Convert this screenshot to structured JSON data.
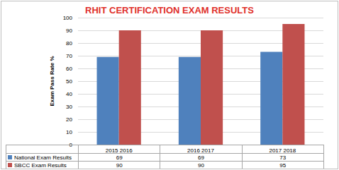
{
  "chart_data": {
    "type": "bar",
    "title": "RHIT CERTIFICATION EXAM RESULTS",
    "y_label": "Exam Pass Rate %",
    "categories": [
      "2015 2016",
      "2016 2017",
      "2017 2018"
    ],
    "series": [
      {
        "name": "National Exam Results",
        "color": "#4f81bd",
        "values": [
          69,
          69,
          73
        ]
      },
      {
        "name": "SBCC Exam Results",
        "color": "#c0504d",
        "values": [
          90,
          90,
          95
        ]
      }
    ],
    "ylim": [
      0,
      100
    ],
    "yticks": [
      0,
      10,
      20,
      30,
      40,
      50,
      60,
      70,
      80,
      90,
      100
    ],
    "grid": true
  }
}
